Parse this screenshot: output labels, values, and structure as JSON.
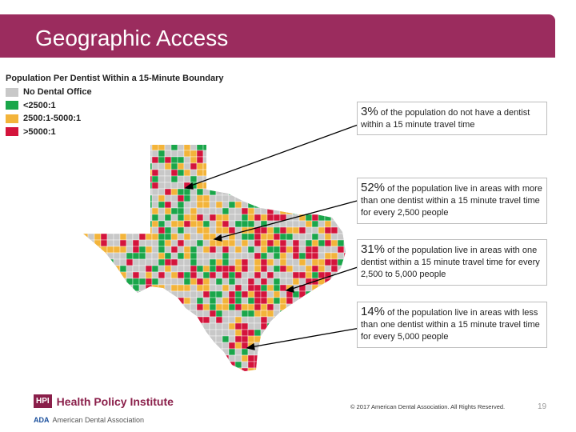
{
  "slide": {
    "title": "Geographic Access"
  },
  "legend": {
    "title": "Population Per Dentist Within a 15-Minute Boundary",
    "items": [
      {
        "label": "No Dental Office",
        "color": "#c8c8c8"
      },
      {
        "label": "<2500:1",
        "color": "#1aa64a"
      },
      {
        "label": "2500:1-5000:1",
        "color": "#f3b43a"
      },
      {
        "label": ">5000:1",
        "color": "#d4143c"
      }
    ]
  },
  "callouts": [
    {
      "pct": "3%",
      "text": " of the population do not have a dentist within a 15 minute travel time"
    },
    {
      "pct": "52%",
      "text": " of the population live in areas with more than one dentist within a 15 minute travel time for every 2,500 people"
    },
    {
      "pct": "31%",
      "text": " of the population live in areas with one dentist within a 15 minute travel time for every 2,500 to 5,000 people"
    },
    {
      "pct": "14%",
      "text": " of the population live in areas with less than one dentist within a 15 minute travel time for every 5,000 people"
    }
  ],
  "footer": {
    "hpi_badge": "HPI",
    "hpi_name": "Health Policy Institute",
    "ada_mark": "ADA",
    "ada_name": "American Dental Association",
    "copyright": "© 2017 American Dental Association. All Rights Reserved.",
    "page_number": "19"
  }
}
